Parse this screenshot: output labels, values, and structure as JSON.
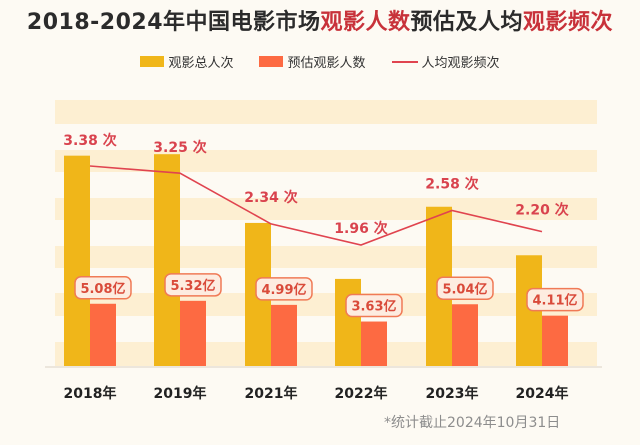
{
  "chart_data": {
    "type": "bar",
    "title_parts": [
      {
        "text": "2018-2024年中国电影市场",
        "highlight": false
      },
      {
        "text": "观影人数",
        "highlight": true
      },
      {
        "text": "预估及人均",
        "highlight": false
      },
      {
        "text": "观影频次",
        "highlight": true
      }
    ],
    "categories": [
      "2018年",
      "2019年",
      "2021年",
      "2022年",
      "2023年",
      "2024年"
    ],
    "series": [
      {
        "name": "观影总人次",
        "type": "bar",
        "color": "#f0b619",
        "values": [
          17.17,
          17.29,
          11.68,
          7.11,
          13.0,
          9.04
        ],
        "labels_shown": false
      },
      {
        "name": "预估观影人数",
        "type": "bar",
        "color": "#fd6a42",
        "values": [
          5.08,
          5.32,
          4.99,
          3.63,
          5.04,
          4.11
        ],
        "labels": [
          "5.08亿",
          "5.32亿",
          "4.99亿",
          "3.63亿",
          "5.04亿",
          "4.11亿"
        ]
      },
      {
        "name": "人均观影频次",
        "type": "line",
        "color": "#e0444f",
        "values": [
          3.38,
          3.25,
          2.34,
          1.96,
          2.58,
          2.2
        ],
        "labels": [
          "3.38 次",
          "3.25 次",
          "2.34 次",
          "1.96 次",
          "2.58 次",
          "2.20 次"
        ]
      }
    ],
    "xlabel": "",
    "ylabel": "",
    "ylim": [
      0,
      21
    ],
    "grid": "horizontal bands",
    "legend": "top-center",
    "footnote": "*统计截止2024年10月31日"
  },
  "colors": {
    "title": "#2b2b2b",
    "highlight": "#c8323a",
    "band": "#fdefd2",
    "label_text": "#d94a3a",
    "line_label": "#d9434e"
  }
}
